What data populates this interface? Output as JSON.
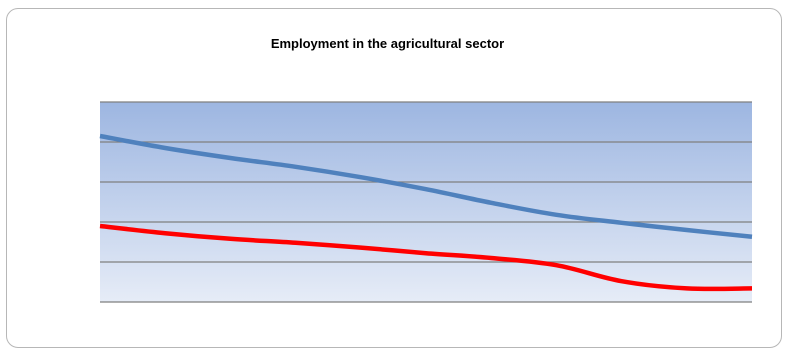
{
  "chart_data": {
    "type": "line",
    "title": "Employment in the agricultural sector",
    "xlabel": "",
    "ylabel": "",
    "ylim": [
      0,
      5
    ],
    "grid": true,
    "gridlines": [
      0,
      1,
      2,
      3,
      4,
      5
    ],
    "legend": "none",
    "x": [
      0,
      1,
      2,
      3,
      4,
      5,
      6,
      7,
      8,
      9,
      10
    ],
    "series": [
      {
        "color": "#4f81bd",
        "values": [
          4.15,
          3.85,
          3.6,
          3.38,
          3.12,
          2.82,
          2.48,
          2.18,
          1.98,
          1.8,
          1.63
        ]
      },
      {
        "color": "#ff0000",
        "values": [
          1.9,
          1.72,
          1.58,
          1.48,
          1.36,
          1.22,
          1.1,
          0.92,
          0.52,
          0.34,
          0.34
        ]
      }
    ]
  },
  "colors": {
    "plot_top": "#9db6e1",
    "plot_bottom": "#e6ecf7",
    "gridline": "#7f7f7f"
  }
}
